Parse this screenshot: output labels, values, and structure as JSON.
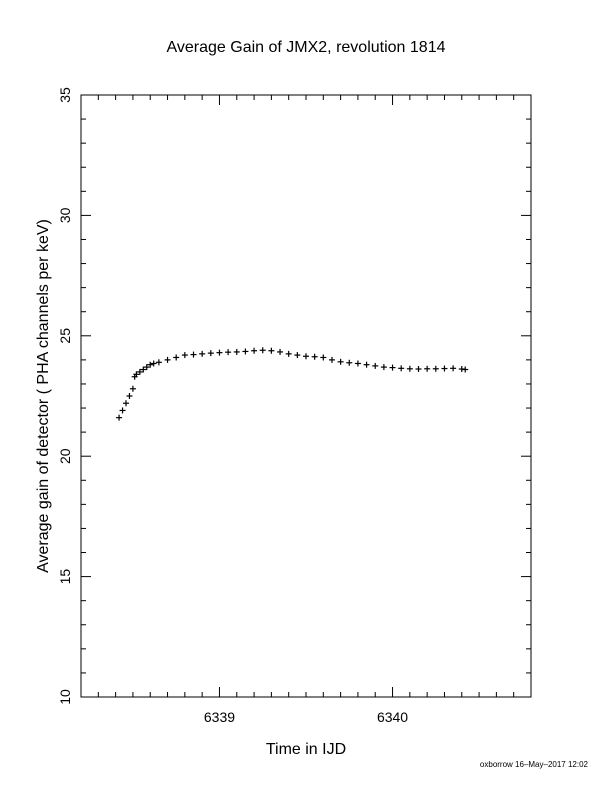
{
  "chart_data": {
    "type": "scatter",
    "title": "Average Gain of JMX2, revolution 1814",
    "xlabel": "Time in IJD",
    "ylabel": "Average gain of detector ( PHA channels per keV)",
    "xlim": [
      6338.2,
      6340.8
    ],
    "ylim": [
      10,
      35
    ],
    "xticks": [
      6339,
      6340
    ],
    "yticks": [
      10,
      15,
      20,
      25,
      30,
      35
    ],
    "marker": "plus",
    "grid": false,
    "series": [
      {
        "x": [
          6338.42,
          6338.44,
          6338.46,
          6338.48,
          6338.5,
          6338.51,
          6338.52,
          6338.54,
          6338.56,
          6338.58,
          6338.6,
          6338.62,
          6338.65,
          6338.7,
          6338.75,
          6338.8,
          6338.85,
          6338.9,
          6338.95,
          6339.0,
          6339.05,
          6339.1,
          6339.15,
          6339.2,
          6339.25,
          6339.3,
          6339.35,
          6339.4,
          6339.45,
          6339.5,
          6339.55,
          6339.6,
          6339.65,
          6339.7,
          6339.75,
          6339.8,
          6339.85,
          6339.9,
          6339.95,
          6340.0,
          6340.05,
          6340.1,
          6340.15,
          6340.2,
          6340.25,
          6340.3,
          6340.35,
          6340.4,
          6340.42
        ],
        "y": [
          21.6,
          21.9,
          22.2,
          22.5,
          22.8,
          23.3,
          23.4,
          23.5,
          23.6,
          23.7,
          23.8,
          23.85,
          23.9,
          24.0,
          24.1,
          24.2,
          24.22,
          24.25,
          24.28,
          24.3,
          24.32,
          24.33,
          24.35,
          24.38,
          24.4,
          24.38,
          24.33,
          24.25,
          24.2,
          24.15,
          24.13,
          24.1,
          24.0,
          23.92,
          23.88,
          23.85,
          23.8,
          23.75,
          23.7,
          23.68,
          23.65,
          23.63,
          23.62,
          23.63,
          23.63,
          23.64,
          23.65,
          23.62,
          23.6
        ]
      }
    ]
  },
  "footer": {
    "credit": "oxborrow 16–May–2017 12:02"
  }
}
